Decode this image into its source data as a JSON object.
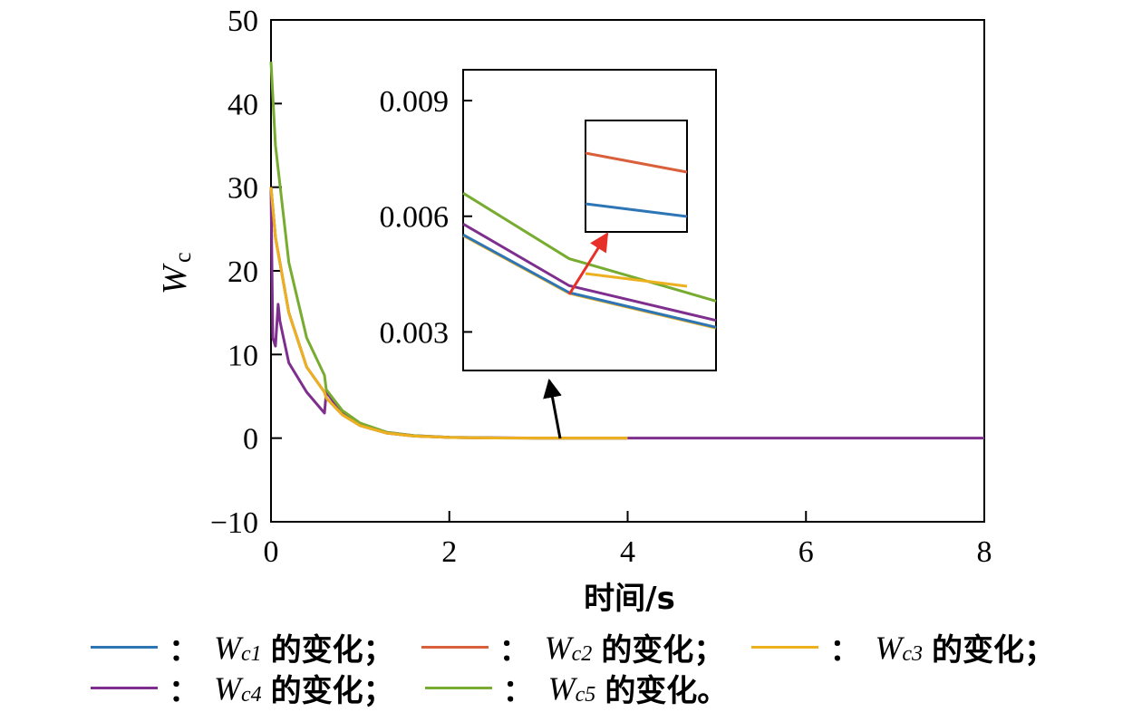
{
  "chart_data": {
    "type": "line",
    "xlabel": "时间/s",
    "ylabel": "W",
    "ylabel_sub": "c",
    "xlim": [
      0,
      8
    ],
    "ylim": [
      -10,
      50
    ],
    "x_ticks": [
      "0",
      "2",
      "4",
      "6",
      "8"
    ],
    "y_ticks": [
      "−10",
      "0",
      "10",
      "20",
      "30",
      "40",
      "50"
    ],
    "series": [
      {
        "name": "W",
        "sub": "c1",
        "color": "#2e75b6",
        "x": [
          0,
          0.05,
          0.2,
          0.4,
          0.6,
          0.62,
          0.8,
          1.0,
          1.3,
          1.6,
          2.0,
          2.5,
          3.0,
          4.0
        ],
        "y": [
          30,
          24,
          15,
          8.5,
          5.5,
          4.8,
          2.8,
          1.5,
          0.6,
          0.25,
          0.08,
          0.02,
          0.005,
          0.002
        ]
      },
      {
        "name": "W",
        "sub": "c2",
        "color": "#d9603b",
        "x": [
          0,
          0.05,
          0.2,
          0.4,
          0.6,
          0.62,
          0.8,
          1.0,
          1.3,
          1.6,
          2.0,
          2.5,
          3.0,
          4.0
        ],
        "y": [
          30,
          24,
          15,
          8.5,
          5.5,
          4.8,
          2.8,
          1.5,
          0.6,
          0.25,
          0.08,
          0.02,
          0.005,
          0.002
        ]
      },
      {
        "name": "W",
        "sub": "c3",
        "color": "#edb120",
        "x": [
          0,
          0.05,
          0.2,
          0.4,
          0.6,
          0.62,
          0.8,
          1.0,
          1.3,
          1.6,
          2.0,
          2.5,
          3.0,
          4.0
        ],
        "y": [
          30,
          24,
          15,
          8.5,
          5.5,
          4.8,
          2.8,
          1.5,
          0.6,
          0.25,
          0.08,
          0.02,
          0.005,
          0.002
        ]
      },
      {
        "name": "W",
        "sub": "c4",
        "color": "#7e2f8e",
        "x": [
          0,
          0.02,
          0.05,
          0.08,
          0.1,
          0.2,
          0.4,
          0.6,
          0.62,
          0.8,
          1.0,
          1.3,
          1.6,
          2.0,
          3.0,
          4.0,
          6.0,
          8.0
        ],
        "y": [
          30,
          12,
          11,
          16,
          14,
          9,
          5.5,
          3.0,
          5.5,
          3.0,
          1.6,
          0.7,
          0.3,
          0.1,
          0.01,
          0.003,
          0.0,
          0.0
        ]
      },
      {
        "name": "W",
        "sub": "c5",
        "color": "#77ac30",
        "x": [
          0,
          0.05,
          0.2,
          0.4,
          0.6,
          0.62,
          0.8,
          1.0,
          1.3,
          1.6,
          2.0,
          2.5,
          3.0,
          4.0
        ],
        "y": [
          45,
          35,
          21,
          12,
          7.5,
          5.8,
          3.3,
          1.8,
          0.7,
          0.3,
          0.1,
          0.03,
          0.008,
          0.003
        ]
      }
    ],
    "inset": {
      "y_ticks": [
        "0.003",
        "0.006",
        "0.009"
      ],
      "ylim": [
        0.002,
        0.0098
      ],
      "series": [
        {
          "color": "#77ac30",
          "y": [
            0.0066,
            0.0049,
            0.0038
          ]
        },
        {
          "color": "#7e2f8e",
          "y": [
            0.0058,
            0.0042,
            0.0033
          ]
        },
        {
          "color": "#edb120",
          "y": [
            0.0055,
            0.004,
            0.0031
          ]
        },
        {
          "color": "#2e75b6",
          "y": [
            0.00552,
            0.00402,
            0.00312
          ]
        }
      ],
      "zoom_series": [
        {
          "color": "#d9603b",
          "y": [
            0.76,
            0.745
          ]
        },
        {
          "color": "#2e75b6",
          "y": [
            0.72,
            0.71
          ]
        },
        {
          "color": "#edb120",
          "y": [
            0.665,
            0.655
          ]
        }
      ]
    }
  },
  "legend": [
    {
      "color": "#2e75b6",
      "colon": "：",
      "w": "W",
      "sub": "c1",
      "rest": "的变化；"
    },
    {
      "color": "#d9603b",
      "colon": "：",
      "w": "W",
      "sub": "c2",
      "rest": "的变化；"
    },
    {
      "color": "#edb120",
      "colon": "：",
      "w": "W",
      "sub": "c3",
      "rest": "的变化；"
    },
    {
      "color": "#7e2f8e",
      "colon": "：",
      "w": "W",
      "sub": "c4",
      "rest": "的变化；"
    },
    {
      "color": "#77ac30",
      "colon": "：",
      "w": "W",
      "sub": "c5",
      "rest": "的变化。"
    }
  ]
}
